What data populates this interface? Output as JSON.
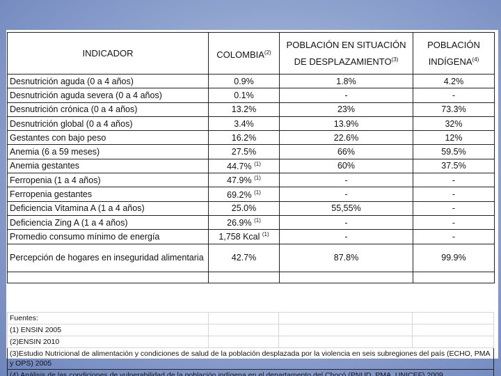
{
  "headers": {
    "indicator": "INDICADOR",
    "colombia": "COLOMBIA",
    "colombia_ref": "(2)",
    "displaced_line1": "POBLACIÓN EN SITUACIÓN",
    "displaced_line2": "DE DESPLAZAMIENTO",
    "displaced_ref": "(3)",
    "indigenous_line1": "POBLACIÓN",
    "indigenous_line2": "INDÍGENA",
    "indigenous_ref": "(4)"
  },
  "rows": [
    {
      "indicator": "Desnutrición aguda (0 a 4 años)",
      "colombia": "0.9%",
      "colombia_ref": "",
      "displaced": "1.8%",
      "indigenous": "4.2%"
    },
    {
      "indicator": "Desnutrición aguda severa (0 a 4 años)",
      "colombia": "0.1%",
      "colombia_ref": "",
      "displaced": "-",
      "indigenous": "-"
    },
    {
      "indicator": "Desnutrición crónica (0 a 4 años)",
      "colombia": "13.2%",
      "colombia_ref": "",
      "displaced": "23%",
      "indigenous": "73.3%"
    },
    {
      "indicator": "Desnutrición global (0 a 4 años)",
      "colombia": "3.4%",
      "colombia_ref": "",
      "displaced": "13.9%",
      "indigenous": "32%"
    },
    {
      "indicator": "Gestantes con bajo peso",
      "colombia": "16.2%",
      "colombia_ref": "",
      "displaced": "22.6%",
      "indigenous": "12%"
    },
    {
      "indicator": "Anemia (6 a 59 meses)",
      "colombia": "27.5%",
      "colombia_ref": "",
      "displaced": "66%",
      "indigenous": "59.5%"
    },
    {
      "indicator": "Anemia gestantes",
      "colombia": "44.7%",
      "colombia_ref": "(1)",
      "displaced": "60%",
      "indigenous": "37.5%"
    },
    {
      "indicator": "Ferropenia (1 a 4 años)",
      "colombia": "47.9%",
      "colombia_ref": "(1)",
      "displaced": "-",
      "indigenous": "-"
    },
    {
      "indicator": "Ferropenia gestantes",
      "colombia": "69.2%",
      "colombia_ref": "(1)",
      "displaced": "-",
      "indigenous": "-"
    },
    {
      "indicator": "Deficiencia Vitamina A (1 a 4 años)",
      "colombia": "25.0%",
      "colombia_ref": "",
      "displaced": "55,55%",
      "indigenous": "-"
    },
    {
      "indicator": "Deficiencia Zing A (1 a 4 años)",
      "colombia": "26.9%",
      "colombia_ref": "(1)",
      "displaced": "-",
      "indigenous": "-"
    },
    {
      "indicator": "Promedio consumo mínimo de energía",
      "colombia": "1,758 Kcal",
      "colombia_ref": "(1)",
      "displaced": "-",
      "indigenous": "-"
    },
    {
      "indicator": "Percepción de hogares en inseguridad alimentaria",
      "colombia": "42.7%",
      "colombia_ref": "",
      "displaced": "87.8%",
      "indigenous": "99.9%"
    }
  ],
  "notes": {
    "title": "Fuentes:",
    "n1": "(1) ENSIN 2005",
    "n2": "(2)ENSIN 2010",
    "n3": "(3)Estudio Nutricional de alimentación y condiciones de salud de la población desplazada por la violencia en seis subregiones del país (ECHO, PMA y OPS) 2005",
    "n4": "(4) Análisis de las condiciones de vulnerabilidad de la población indígena en el departamento del Chocó (PNUD, PMA, UNICEF) 2009"
  }
}
